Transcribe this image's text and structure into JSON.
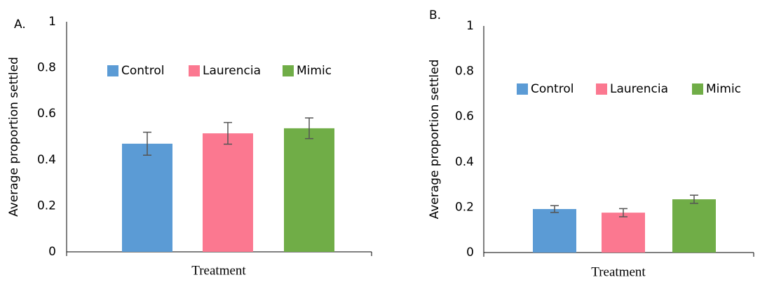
{
  "chart_data": [
    {
      "type": "bar",
      "panel_label": "A.",
      "y_label": "Average proportion settled",
      "x_label": "Treatment",
      "ylim": [
        0,
        1
      ],
      "yticks": [
        0,
        0.2,
        0.4,
        0.6,
        0.8,
        1
      ],
      "grid": false,
      "legend": "top",
      "series": [
        {
          "name": "Control",
          "color": "#5b9bd5",
          "values": [
            0.47
          ],
          "errors": [
            0.05
          ]
        },
        {
          "name": "Laurencia",
          "color": "#fb7890",
          "values": [
            0.515
          ],
          "errors": [
            0.047
          ]
        },
        {
          "name": "Mimic",
          "color": "#70ad47",
          "values": [
            0.537
          ],
          "errors": [
            0.045
          ]
        }
      ]
    },
    {
      "type": "bar",
      "panel_label": "B.",
      "y_label": "Average proportion settled",
      "x_label": "Treatment",
      "ylim": [
        0,
        1
      ],
      "yticks": [
        0,
        0.2,
        0.4,
        0.6,
        0.8,
        1
      ],
      "grid": false,
      "legend": "top",
      "series": [
        {
          "name": "Control",
          "color": "#5b9bd5",
          "values": [
            0.192
          ],
          "errors": [
            0.015
          ]
        },
        {
          "name": "Laurencia",
          "color": "#fb7890",
          "values": [
            0.176
          ],
          "errors": [
            0.018
          ]
        },
        {
          "name": "Mimic",
          "color": "#70ad47",
          "values": [
            0.235
          ],
          "errors": [
            0.018
          ]
        }
      ]
    }
  ]
}
